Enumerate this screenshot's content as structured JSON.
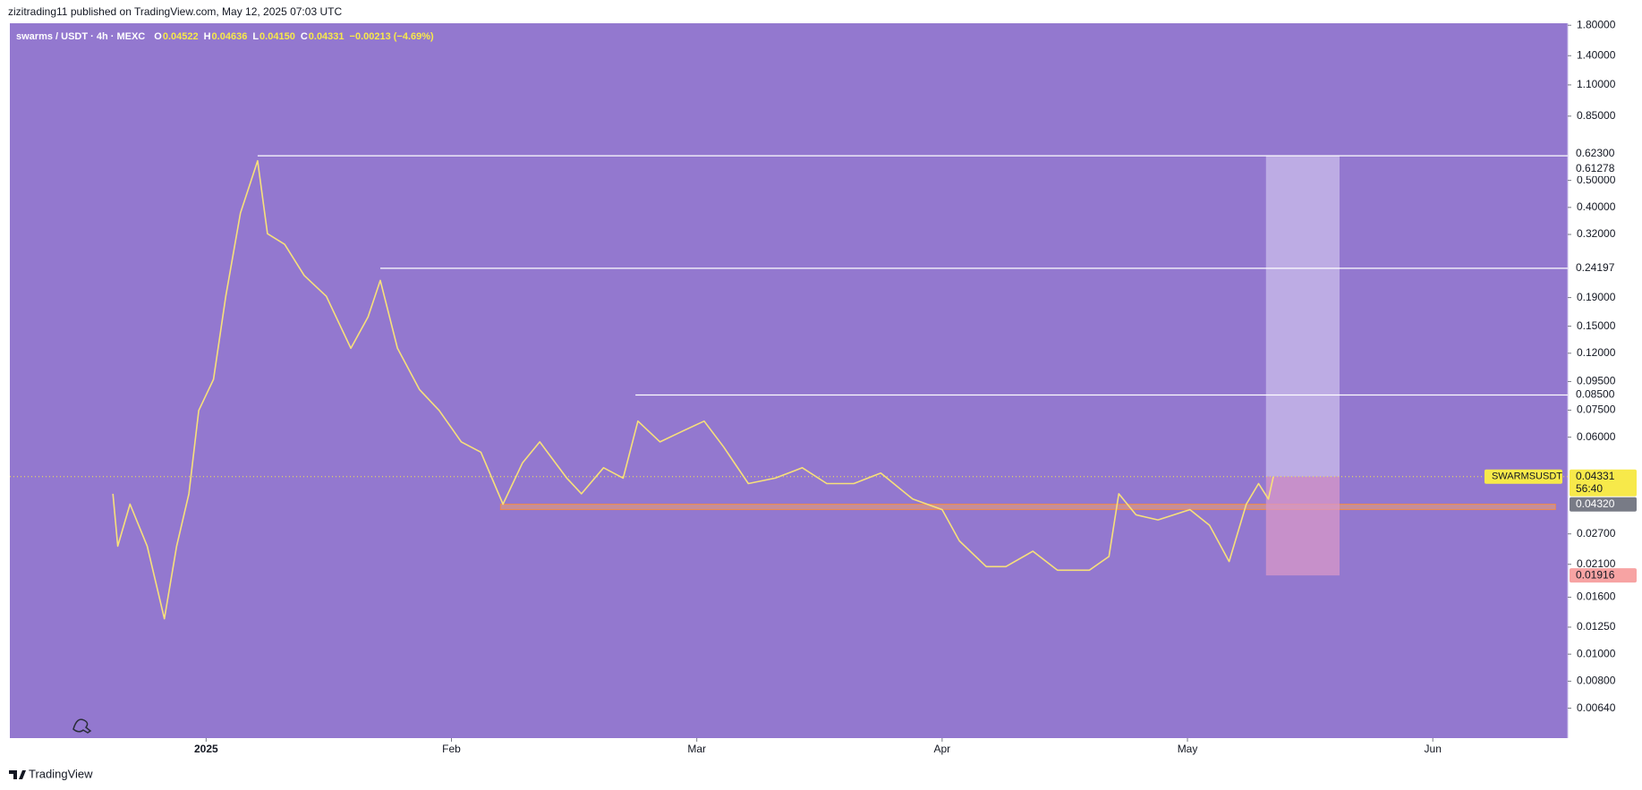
{
  "header": "zizitrading11 published on TradingView.com, May 12, 2025 07:03 UTC",
  "footer": "TradingView",
  "chart_data": {
    "type": "line",
    "title": "swarms / USDT · 4h · MEXC",
    "ohlc": [
      {
        "label": "O",
        "value": "0.04522"
      },
      {
        "label": "H",
        "value": "0.04636"
      },
      {
        "label": "L",
        "value": "0.04150"
      },
      {
        "label": "C",
        "value": "0.04331"
      }
    ],
    "change": "−0.00213 (−4.69%)",
    "log_scale": true,
    "background": "#9378cf",
    "series": [
      {
        "name": "SWARMSUSDT",
        "color": "#f7e07a",
        "x": [
          -0.38,
          -0.36,
          -0.31,
          -0.24,
          -0.17,
          -0.12,
          -0.07,
          -0.03,
          0.03,
          0.08,
          0.14,
          0.21,
          0.25,
          0.32,
          0.4,
          0.49,
          0.59,
          0.66,
          0.71,
          0.78,
          0.87,
          0.95,
          1.04,
          1.12,
          1.21,
          1.29,
          1.36,
          1.47,
          1.53,
          1.62,
          1.7,
          1.76,
          1.85,
          1.94,
          2.03,
          2.11,
          2.21,
          2.32,
          2.43,
          2.53,
          2.64,
          2.75,
          2.88,
          3.0,
          3.07,
          3.18,
          3.26,
          3.37,
          3.47,
          3.6,
          3.68,
          3.72,
          3.79,
          3.88,
          4.01,
          4.09,
          4.17,
          4.24,
          4.29,
          4.33,
          4.35
        ],
        "values": [
          0.0376,
          0.0244,
          0.0345,
          0.0244,
          0.0134,
          0.0244,
          0.0376,
          0.0748,
          0.0967,
          0.192,
          0.382,
          0.588,
          0.322,
          0.295,
          0.228,
          0.192,
          0.125,
          0.162,
          0.219,
          0.125,
          0.0888,
          0.0748,
          0.0577,
          0.053,
          0.0345,
          0.0486,
          0.0577,
          0.0428,
          0.0376,
          0.0466,
          0.0428,
          0.0685,
          0.0577,
          0.0629,
          0.0685,
          0.0553,
          0.0409,
          0.0428,
          0.0466,
          0.0409,
          0.0409,
          0.0446,
          0.036,
          0.033,
          0.0255,
          0.0206,
          0.0206,
          0.0234,
          0.02,
          0.02,
          0.0224,
          0.0376,
          0.0316,
          0.0303,
          0.033,
          0.029,
          0.0215,
          0.0345,
          0.0409,
          0.036,
          0.04331
        ]
      }
    ],
    "xlim": [
      -0.8,
      5.55
    ],
    "xticks": [
      {
        "value": 0,
        "label": "2025"
      },
      {
        "value": 1,
        "label": "Feb"
      },
      {
        "value": 2,
        "label": "Mar"
      },
      {
        "value": 3,
        "label": "Apr"
      },
      {
        "value": 4,
        "label": "May"
      },
      {
        "value": 5,
        "label": "Jun"
      }
    ],
    "ylim": [
      0.005,
      1.83
    ],
    "yticks": [
      {
        "value": 1.8,
        "label": "1.80000"
      },
      {
        "value": 1.4,
        "label": "1.40000"
      },
      {
        "value": 1.1,
        "label": "1.10000"
      },
      {
        "value": 0.85,
        "label": "0.85000"
      },
      {
        "value": 0.5,
        "label": "0.50000"
      },
      {
        "value": 0.4,
        "label": "0.40000"
      },
      {
        "value": 0.32,
        "label": "0.32000"
      },
      {
        "value": 0.19,
        "label": "0.19000"
      },
      {
        "value": 0.15,
        "label": "0.15000"
      },
      {
        "value": 0.12,
        "label": "0.12000"
      },
      {
        "value": 0.095,
        "label": "0.09500"
      },
      {
        "value": 0.075,
        "label": "0.07500"
      },
      {
        "value": 0.06,
        "label": "0.06000"
      },
      {
        "value": 0.027,
        "label": "0.02700"
      },
      {
        "value": 0.021,
        "label": "0.02100"
      },
      {
        "value": 0.016,
        "label": "0.01600"
      },
      {
        "value": 0.0125,
        "label": "0.01250"
      },
      {
        "value": 0.01,
        "label": "0.01000"
      },
      {
        "value": 0.008,
        "label": "0.00800"
      },
      {
        "value": 0.0064,
        "label": "0.00640"
      }
    ],
    "levels": [
      {
        "value": 0.623,
        "label": "0.62300",
        "color": "#ffffff",
        "text_color": "#131722"
      },
      {
        "value": 0.61278,
        "label": "0.61278",
        "color": "#ffffff",
        "text_color": "#131722",
        "line_from": 0.21
      },
      {
        "value": 0.24197,
        "label": "0.24197",
        "color": "#ffffff",
        "text_color": "#131722",
        "line_from": 0.71
      },
      {
        "value": 0.085,
        "label": "0.08500",
        "color": "#ffffff",
        "text_color": "#131722",
        "line_from": 1.75
      },
      {
        "value": 0.04331,
        "label": "0.04331",
        "color": "#f7e94a",
        "text_color": "#131722",
        "countdown": "56:40"
      },
      {
        "value": 0.0432,
        "label": "0.04320",
        "color": "#787b86",
        "text_color": "#ffffff"
      },
      {
        "value": 0.01916,
        "label": "0.01916",
        "color": "#f7a3a3",
        "text_color": "#131722"
      }
    ],
    "zone": {
      "x": [
        1.2,
        5.5
      ],
      "values": [
        0.033,
        0.0345
      ],
      "color": "#f0a070"
    },
    "position": {
      "x": [
        4.32,
        4.62
      ],
      "entry": 0.04331,
      "target": 0.61278,
      "stop": 0.01916
    }
  }
}
